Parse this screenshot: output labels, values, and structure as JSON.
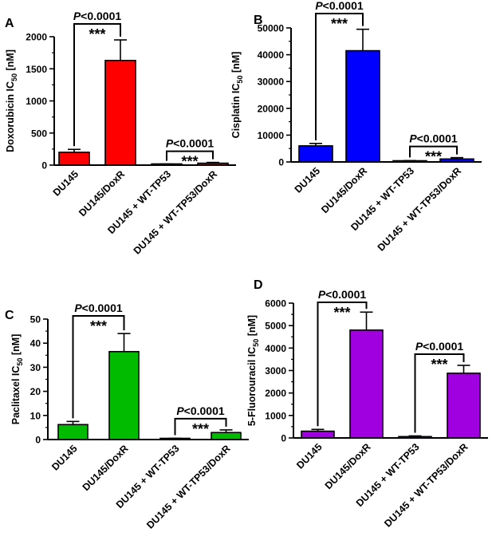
{
  "chart_data": [
    {
      "panel": "A",
      "type": "bar",
      "categories": [
        "DU145",
        "DU145/DoxR",
        "DU145 + WT-TP53",
        "DU145 + WT-TP53/DoxR"
      ],
      "values": [
        200,
        1630,
        12,
        30
      ],
      "errors": [
        45,
        320,
        5,
        12
      ],
      "ylabel_main": "Doxorubicin IC",
      "ylabel_sub": "50",
      "ylabel_unit": " [nM]",
      "ylim": [
        0,
        2000
      ],
      "yticks": [
        0,
        500,
        1000,
        1500,
        2000
      ],
      "ytick_labels": [
        "0",
        "500",
        "1000",
        "1500",
        "2000"
      ],
      "color": "#ff0000",
      "comparisons": [
        {
          "from": 0,
          "to": 1,
          "p_label": "P",
          "p_value": "<0.0001",
          "stars": "***"
        },
        {
          "from": 2,
          "to": 3,
          "p_label": "P",
          "p_value": "<0.0001",
          "stars": "***"
        }
      ]
    },
    {
      "panel": "B",
      "type": "bar",
      "categories": [
        "DU145",
        "DU145/DoxR",
        "DU145 + WT-TP53",
        "DU145 + WT-TP53/DoxR"
      ],
      "values": [
        6000,
        41500,
        300,
        1100
      ],
      "errors": [
        900,
        8000,
        200,
        500
      ],
      "ylabel_main": "Cisplatin IC",
      "ylabel_sub": "50",
      "ylabel_unit": " [nM]",
      "ylim": [
        0,
        50000
      ],
      "yticks": [
        0,
        10000,
        20000,
        30000,
        40000,
        50000
      ],
      "ytick_labels": [
        "0",
        "10000",
        "20000",
        "30000",
        "40000",
        "50000"
      ],
      "color": "#0000ff",
      "comparisons": [
        {
          "from": 0,
          "to": 1,
          "p_label": "P",
          "p_value": "<0.0001",
          "stars": "***"
        },
        {
          "from": 2,
          "to": 3,
          "p_label": "P",
          "p_value": "<0.0001",
          "stars": "***"
        }
      ]
    },
    {
      "panel": "C",
      "type": "bar",
      "categories": [
        "DU145",
        "DU145/DoxR",
        "DU145 + WT-TP53",
        "DU145 + WT-TP53/DoxR"
      ],
      "values": [
        6.2,
        36.5,
        0.3,
        2.9
      ],
      "errors": [
        1.3,
        7.5,
        0.2,
        1.1
      ],
      "ylabel_main": "Paclitaxel IC",
      "ylabel_sub": "50",
      "ylabel_unit": " [nM]",
      "ylim": [
        0,
        50
      ],
      "yticks": [
        0,
        10,
        20,
        30,
        40,
        50
      ],
      "ytick_labels": [
        "0",
        "10",
        "20",
        "30",
        "40",
        "50"
      ],
      "color": "#00bb00",
      "comparisons": [
        {
          "from": 0,
          "to": 1,
          "p_label": "P",
          "p_value": "<0.0001",
          "stars": "***"
        },
        {
          "from": 2,
          "to": 3,
          "p_label": "P",
          "p_value": "<0.0001",
          "stars": "***"
        }
      ]
    },
    {
      "panel": "D",
      "type": "bar",
      "categories": [
        "DU145",
        "DU145/DoxR",
        "DU145 + WT-TP53",
        "DU145 + WT-TP53/DoxR"
      ],
      "values": [
        300,
        4800,
        60,
        2880
      ],
      "errors": [
        80,
        800,
        30,
        350
      ],
      "ylabel_main": "5-Fluorouracil IC",
      "ylabel_sub": "50",
      "ylabel_unit": " [nM]",
      "ylim": [
        0,
        6000
      ],
      "yticks": [
        0,
        1000,
        2000,
        3000,
        4000,
        5000,
        6000
      ],
      "ytick_labels": [
        "0",
        "1000",
        "2000",
        "3000",
        "4000",
        "5000",
        "6000"
      ],
      "color": "#a000e0",
      "comparisons": [
        {
          "from": 0,
          "to": 1,
          "p_label": "P",
          "p_value": "<0.0001",
          "stars": "***"
        },
        {
          "from": 2,
          "to": 3,
          "p_label": "P",
          "p_value": "<0.0001",
          "stars": "***"
        }
      ]
    }
  ]
}
